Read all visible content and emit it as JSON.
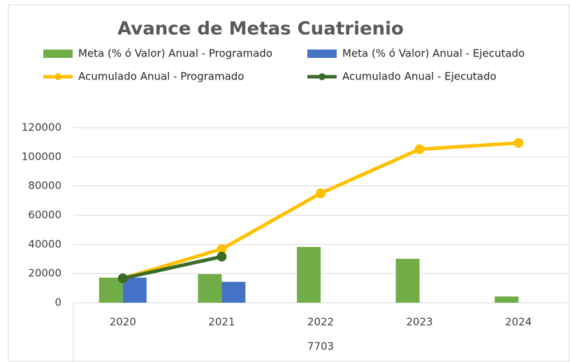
{
  "chart_data": {
    "type": "bar",
    "title": "Avance de Metas Cuatrienio",
    "categories": [
      "2020",
      "2021",
      "2022",
      "2023",
      "2024"
    ],
    "group_label": "7703",
    "series": [
      {
        "name": "Meta (% ó Valor) Anual - Programado",
        "color": "#70ad47",
        "kind": "bar",
        "values": [
          17200,
          19600,
          38200,
          30100,
          4300
        ]
      },
      {
        "name": "Meta (% ó Valor) Anual - Ejecutado",
        "color": "#4472c4",
        "kind": "bar",
        "values": [
          17200,
          14300,
          null,
          null,
          null
        ]
      },
      {
        "name": "Acumulado Anual - Programado",
        "color": "#ffc000",
        "kind": "line",
        "values": [
          16700,
          36800,
          75000,
          105200,
          109500
        ]
      },
      {
        "name": "Acumulado Anual - Ejecutado",
        "color": "#3b6b26",
        "kind": "line",
        "values": [
          16700,
          31600,
          null,
          null,
          null
        ]
      }
    ],
    "ylim": [
      0,
      120000
    ],
    "yticks": [
      0,
      20000,
      40000,
      60000,
      80000,
      100000,
      120000
    ],
    "grid": true
  }
}
